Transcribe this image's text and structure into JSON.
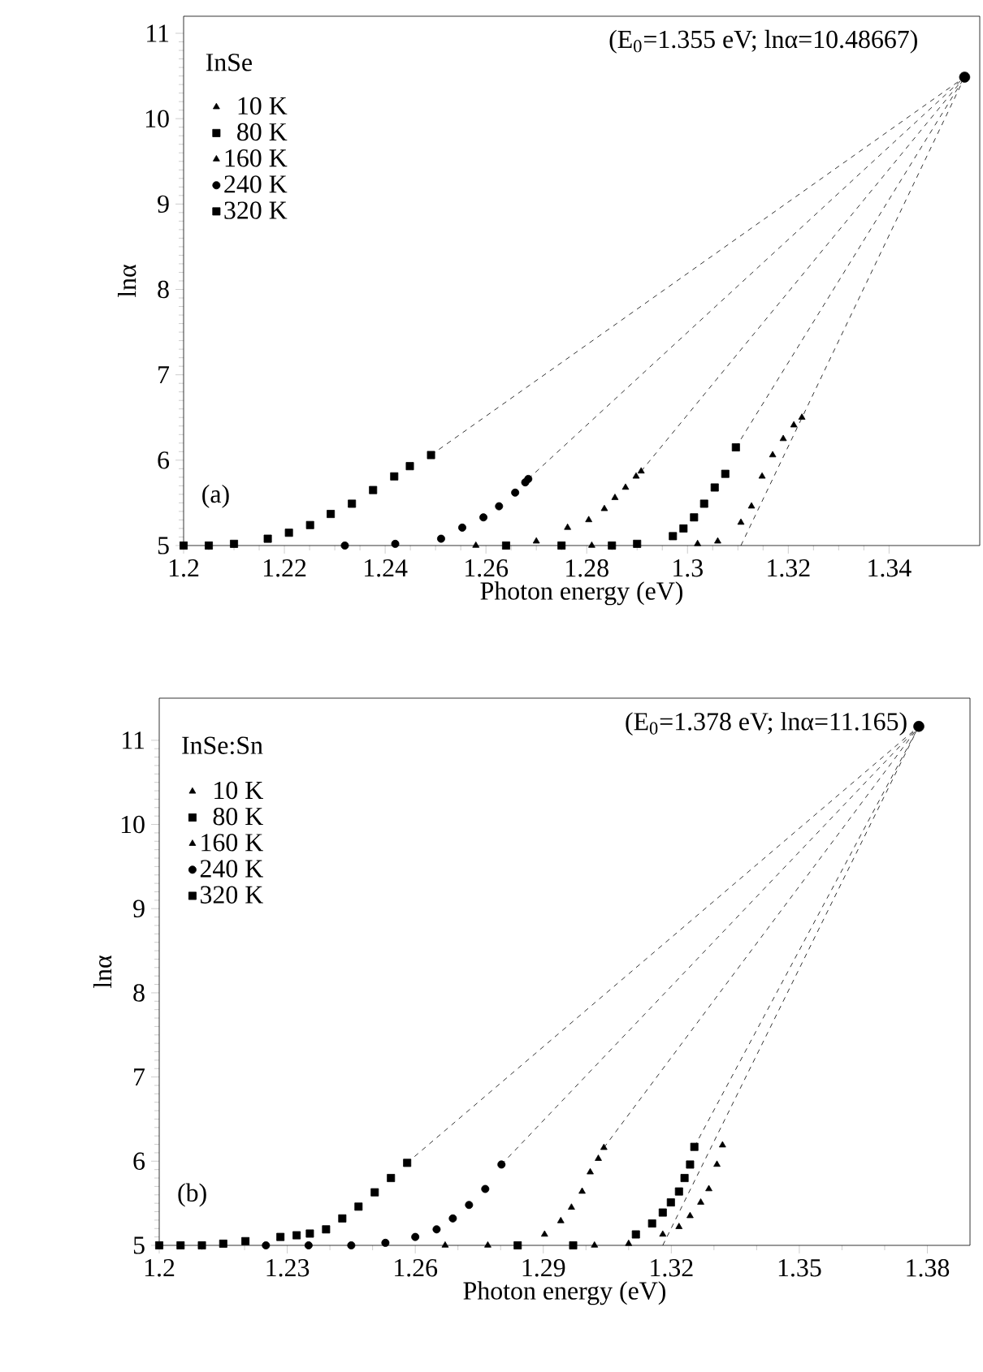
{
  "chart_data": [
    {
      "type": "scatter",
      "xlabel": "Photon energy (eV)",
      "ylabel": "lnα",
      "legend_title": "InSe",
      "legend": "top left",
      "xlim": [
        1.2,
        1.358
      ],
      "ylim": [
        5,
        11.2
      ],
      "xticks": [
        1.2,
        1.22,
        1.24,
        1.26,
        1.28,
        1.3,
        1.32,
        1.34
      ],
      "yticks": [
        5,
        6,
        7,
        8,
        9,
        10,
        11
      ],
      "annotations": [
        "(E$_{0}$=1.355 eV; lnα=10.48667)",
        "(a)"
      ],
      "series": [
        {
          "name": "10 K",
          "color": "#000000",
          "marker": "triangle",
          "x": [
            1.281,
            1.302,
            1.306,
            1.3106,
            1.3127,
            1.3148,
            1.3169,
            1.319,
            1.3211,
            1.3227
          ],
          "values": [
            5.0,
            5.02,
            5.05,
            5.27,
            5.46,
            5.81,
            6.06,
            6.25,
            6.41,
            6.5
          ]
        },
        {
          "name": "80 K",
          "color": "#000000",
          "marker": "square",
          "x": [
            1.264,
            1.275,
            1.285,
            1.29,
            1.2971,
            1.2992,
            1.3013,
            1.3033,
            1.3054,
            1.3075,
            1.3096
          ],
          "values": [
            5.0,
            5.0,
            5.0,
            5.02,
            5.11,
            5.2,
            5.33,
            5.49,
            5.68,
            5.84,
            6.15
          ]
        },
        {
          "name": "160 K",
          "color": "#000000",
          "marker": "triangle",
          "x": [
            1.258,
            1.27,
            1.2762,
            1.2804,
            1.2835,
            1.2856,
            1.2877,
            1.2898,
            1.2908
          ],
          "values": [
            5.0,
            5.05,
            5.21,
            5.3,
            5.43,
            5.56,
            5.68,
            5.81,
            5.87
          ]
        },
        {
          "name": "240 K",
          "color": "#000000",
          "marker": "circle",
          "x": [
            1.232,
            1.242,
            1.2511,
            1.2553,
            1.2595,
            1.2626,
            1.2658,
            1.2678,
            1.2684
          ],
          "values": [
            5.0,
            5.02,
            5.08,
            5.21,
            5.33,
            5.46,
            5.62,
            5.74,
            5.78
          ]
        },
        {
          "name": "320 K",
          "color": "#000000",
          "marker": "square",
          "x": [
            1.2,
            1.205,
            1.21,
            1.2167,
            1.2209,
            1.2251,
            1.2292,
            1.2334,
            1.2376,
            1.2418,
            1.2449,
            1.2491
          ],
          "values": [
            5.0,
            5.0,
            5.02,
            5.08,
            5.15,
            5.24,
            5.37,
            5.49,
            5.65,
            5.81,
            5.93,
            6.06
          ]
        },
        {
          "type": "line",
          "color": "#000000",
          "line_style": "dashed",
          "marker": "none",
          "x": [
            1.3106,
            1.355
          ],
          "values": [
            5.0,
            10.48667
          ]
        },
        {
          "type": "line",
          "color": "#000000",
          "line_style": "dashed",
          "marker": "none",
          "x": [
            1.3096,
            1.355
          ],
          "values": [
            6.15,
            10.48667
          ]
        },
        {
          "type": "line",
          "color": "#000000",
          "line_style": "dashed",
          "marker": "none",
          "x": [
            1.2908,
            1.355
          ],
          "values": [
            5.87,
            10.48667
          ]
        },
        {
          "type": "line",
          "color": "#000000",
          "line_style": "dashed",
          "marker": "none",
          "x": [
            1.2684,
            1.355
          ],
          "values": [
            5.78,
            10.48667
          ]
        },
        {
          "type": "line",
          "color": "#000000",
          "line_style": "dashed",
          "marker": "none",
          "x": [
            1.2491,
            1.355
          ],
          "values": [
            6.06,
            10.48667
          ]
        },
        {
          "color": "#000000",
          "marker": "circle",
          "x": [
            1.355
          ],
          "values": [
            10.48667
          ]
        }
      ]
    },
    {
      "type": "scatter",
      "xlabel": "Photon energy (eV)",
      "ylabel": "lnα",
      "legend_title": "InSe:Sn",
      "legend": "top left",
      "xlim": [
        1.2,
        1.39
      ],
      "ylim": [
        5,
        11.5
      ],
      "xticks": [
        1.2,
        1.23,
        1.26,
        1.29,
        1.32,
        1.35,
        1.38
      ],
      "yticks": [
        5,
        6,
        7,
        8,
        9,
        10,
        11
      ],
      "annotations": [
        "(E$_{0}$=1.378 eV; lnα=11.165)",
        "(b)"
      ],
      "series": [
        {
          "name": "10 K",
          "color": "#000000",
          "marker": "triangle",
          "x": [
            1.302,
            1.31,
            1.318,
            1.3218,
            1.3244,
            1.3269,
            1.3288,
            1.3307,
            1.332
          ],
          "values": [
            5.0,
            5.02,
            5.13,
            5.22,
            5.35,
            5.51,
            5.67,
            5.96,
            6.19
          ]
        },
        {
          "name": "80 K",
          "color": "#000000",
          "marker": "square",
          "x": [
            1.284,
            1.297,
            1.3117,
            1.3155,
            1.318,
            1.3199,
            1.3218,
            1.3231,
            1.3244,
            1.3254
          ],
          "values": [
            5.0,
            5.0,
            5.13,
            5.26,
            5.39,
            5.51,
            5.64,
            5.8,
            5.96,
            6.17
          ]
        },
        {
          "name": "160 K",
          "color": "#000000",
          "marker": "triangle",
          "x": [
            1.267,
            1.277,
            1.2903,
            1.2941,
            1.2966,
            1.2991,
            1.301,
            1.3029,
            1.3042
          ],
          "values": [
            5.0,
            5.0,
            5.13,
            5.29,
            5.45,
            5.64,
            5.87,
            6.03,
            6.16
          ]
        },
        {
          "name": "240 K",
          "color": "#000000",
          "marker": "circle",
          "x": [
            1.225,
            1.235,
            1.245,
            1.253,
            1.26,
            1.265,
            1.2688,
            1.2726,
            1.2764,
            1.2802
          ],
          "values": [
            5.0,
            5.0,
            5.0,
            5.03,
            5.1,
            5.19,
            5.32,
            5.48,
            5.67,
            5.96
          ]
        },
        {
          "name": "320 K",
          "color": "#000000",
          "marker": "square",
          "x": [
            1.2,
            1.205,
            1.21,
            1.215,
            1.2202,
            1.2284,
            1.2322,
            1.2353,
            1.2391,
            1.2429,
            1.2467,
            1.2505,
            1.2543,
            1.2581
          ],
          "values": [
            5.0,
            5.0,
            5.0,
            5.02,
            5.05,
            5.1,
            5.12,
            5.14,
            5.19,
            5.32,
            5.46,
            5.63,
            5.8,
            5.98
          ]
        },
        {
          "type": "line",
          "color": "#000000",
          "line_style": "dashed",
          "marker": "none",
          "x": [
            1.318,
            1.378
          ],
          "values": [
            5.0,
            11.165
          ]
        },
        {
          "type": "line",
          "color": "#000000",
          "line_style": "dashed",
          "marker": "none",
          "x": [
            1.3254,
            1.378
          ],
          "values": [
            6.17,
            11.165
          ]
        },
        {
          "type": "line",
          "color": "#000000",
          "line_style": "dashed",
          "marker": "none",
          "x": [
            1.3042,
            1.378
          ],
          "values": [
            6.16,
            11.165
          ]
        },
        {
          "type": "line",
          "color": "#000000",
          "line_style": "dashed",
          "marker": "none",
          "x": [
            1.2802,
            1.378
          ],
          "values": [
            5.96,
            11.165
          ]
        },
        {
          "type": "line",
          "color": "#000000",
          "line_style": "dashed",
          "marker": "none",
          "x": [
            1.2581,
            1.378
          ],
          "values": [
            5.98,
            11.165
          ]
        },
        {
          "color": "#000000",
          "marker": "circle",
          "x": [
            1.378
          ],
          "values": [
            11.165
          ]
        }
      ]
    }
  ]
}
